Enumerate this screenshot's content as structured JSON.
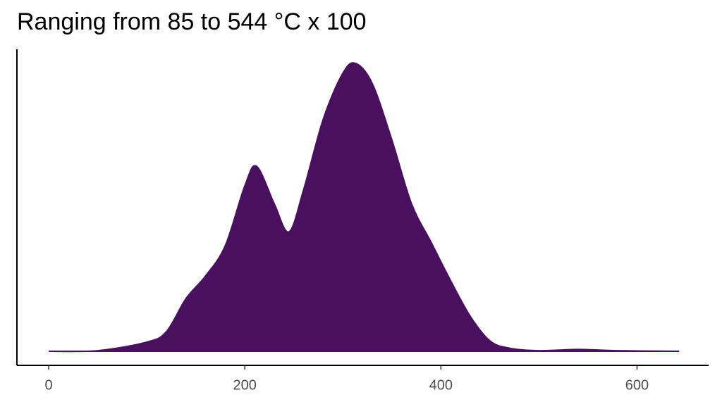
{
  "chart_data": {
    "type": "density",
    "title": "Ranging from 85 to 544 °C x 100",
    "x": [
      0,
      50,
      100,
      120,
      140,
      160,
      180,
      200,
      212,
      230,
      245,
      260,
      280,
      300,
      313,
      330,
      350,
      370,
      390,
      410,
      430,
      450,
      470,
      500,
      540,
      580,
      643
    ],
    "values": [
      0,
      1e-05,
      0.00015,
      0.00032,
      0.00086,
      0.00123,
      0.00172,
      0.0027,
      0.00302,
      0.00241,
      0.00195,
      0.00264,
      0.00379,
      0.00454,
      0.0047,
      0.00437,
      0.00345,
      0.00241,
      0.00178,
      0.00115,
      0.00057,
      0.00017,
      5e-05,
      1e-05,
      3e-05,
      1e-05,
      0
    ],
    "color": "#48105e",
    "xlim": [
      -32.4,
      673
    ],
    "xticks": [
      0,
      200,
      400,
      600
    ],
    "ylim": [
      -0.00023,
      0.00493
    ]
  }
}
